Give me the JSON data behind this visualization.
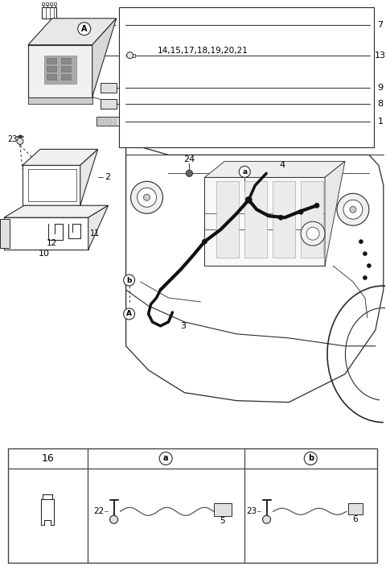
{
  "bg_color": "#ffffff",
  "line_color": "#2a2a2a",
  "label_color": "#000000",
  "fig_width": 4.8,
  "fig_height": 7.08,
  "dpi": 100,
  "part_numbers_line1": "14,15,17,18,19,20,21",
  "part_7": "7",
  "part_13": "13",
  "part_9": "9",
  "part_8": "8",
  "part_1": "1",
  "part_24": "24",
  "part_4": "4",
  "part_23": "23",
  "part_2": "2",
  "part_10": "10",
  "part_11": "11",
  "part_12": "12",
  "part_3": "3",
  "part_16": "16",
  "part_22": "22",
  "part_5": "5",
  "part_6": "6",
  "label_A_main": "A",
  "label_a": "a",
  "label_b": "b"
}
